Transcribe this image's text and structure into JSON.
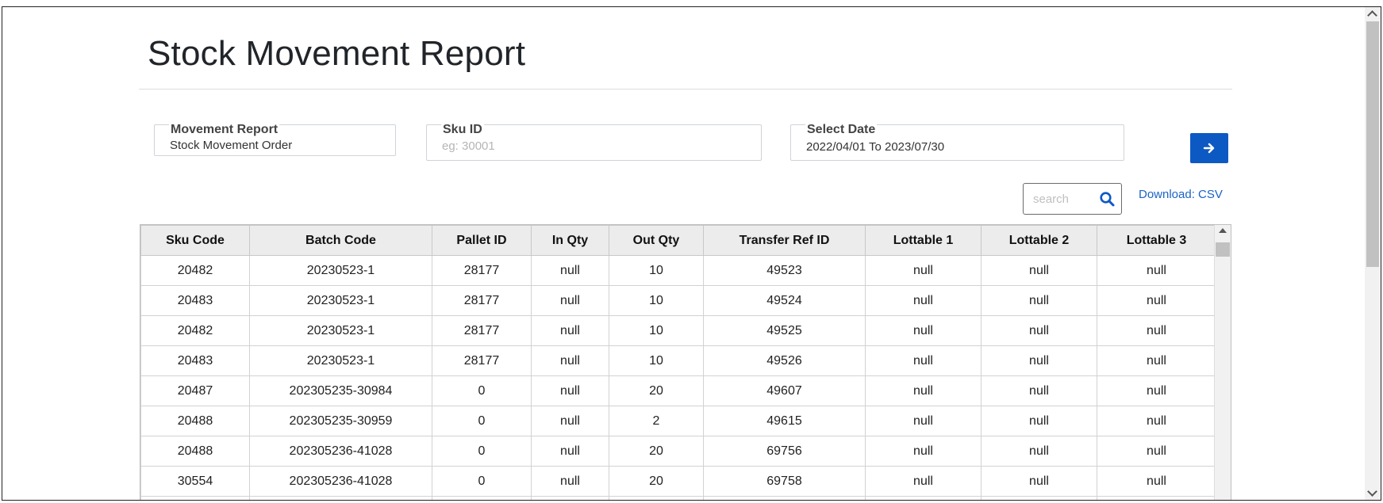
{
  "page": {
    "title": "Stock Movement Report"
  },
  "filters": {
    "movement_report": {
      "label": "Movement Report",
      "value": "Stock Movement Order"
    },
    "sku_id": {
      "label": "Sku ID",
      "value": "",
      "placeholder": "eg: 30001"
    },
    "select_date": {
      "label": "Select Date",
      "value": "2022/04/01 To 2023/07/30"
    },
    "go_icon": "arrow-right-icon"
  },
  "search": {
    "placeholder": "search",
    "icon": "search-icon"
  },
  "download": {
    "label": "Download: CSV"
  },
  "table": {
    "columns": [
      "Sku Code",
      "Batch Code",
      "Pallet ID",
      "In Qty",
      "Out Qty",
      "Transfer Ref ID",
      "Lottable 1",
      "Lottable 2",
      "Lottable 3"
    ],
    "rows": [
      [
        "20482",
        "20230523-1",
        "28177",
        "null",
        "10",
        "49523",
        "null",
        "null",
        "null"
      ],
      [
        "20483",
        "20230523-1",
        "28177",
        "null",
        "10",
        "49524",
        "null",
        "null",
        "null"
      ],
      [
        "20482",
        "20230523-1",
        "28177",
        "null",
        "10",
        "49525",
        "null",
        "null",
        "null"
      ],
      [
        "20483",
        "20230523-1",
        "28177",
        "null",
        "10",
        "49526",
        "null",
        "null",
        "null"
      ],
      [
        "20487",
        "202305235-30984",
        "0",
        "null",
        "20",
        "49607",
        "null",
        "null",
        "null"
      ],
      [
        "20488",
        "202305235-30959",
        "0",
        "null",
        "2",
        "49615",
        "null",
        "null",
        "null"
      ],
      [
        "20488",
        "202305236-41028",
        "0",
        "null",
        "20",
        "69756",
        "null",
        "null",
        "null"
      ],
      [
        "30554",
        "202305236-41028",
        "0",
        "null",
        "20",
        "69758",
        "null",
        "null",
        "null"
      ],
      [
        "",
        "",
        "",
        "",
        "",
        "",
        "",
        "",
        ""
      ]
    ]
  },
  "colors": {
    "primary": "#0d59c3",
    "link": "#1a63c7",
    "header_bg": "#ececec"
  }
}
